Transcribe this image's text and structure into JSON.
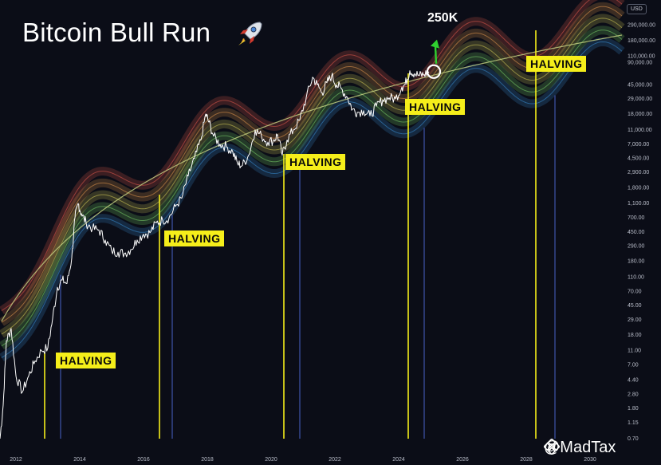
{
  "title": "Bitcoin Bull Run",
  "watermark": "@MadTax",
  "currency_tag": "USD",
  "target_label": "250K",
  "halving_label": "HALVING",
  "colors": {
    "background": "#0b0d17",
    "price": "#ffffff",
    "halving_line": "#f5ee1a",
    "halving_label_bg": "#f5ee1a",
    "blue_line": "#3b4fa0",
    "trend_line": "#c2cf80",
    "arrow": "#2fd12f",
    "band_colors": [
      "#e85b4f",
      "#e89a4f",
      "#d8cf5a",
      "#7bd46a",
      "#3b8fd6"
    ]
  },
  "icons": [
    "rocket-icon",
    "target-circle-icon",
    "up-arrow-icon",
    "binance-logo-icon"
  ],
  "chart_data": {
    "type": "line",
    "scale": "log",
    "title": "Bitcoin Bull Run",
    "xlim": [
      2011.5,
      2031.0
    ],
    "ylim": [
      0.7,
      550000
    ],
    "x_ticks": [
      "2012",
      "2014",
      "2016",
      "2018",
      "2020",
      "2022",
      "2024",
      "2026",
      "2028",
      "2030"
    ],
    "y_ticks": [
      "290,000.00",
      "180,000.00",
      "110,000.00",
      "90,000.00",
      "45,000.00",
      "29,000.00",
      "18,000.00",
      "11,000.00",
      "7,000.00",
      "4,500.00",
      "2,900.00",
      "1,800.00",
      "1,100.00",
      "700.00",
      "450.00",
      "290.00",
      "180.00",
      "110.00",
      "70.00",
      "45.00",
      "29.00",
      "18.00",
      "11.00",
      "7.00",
      "4.40",
      "2.80",
      "1.80",
      "1.15",
      "0.70"
    ],
    "halvings": [
      2012.9,
      2016.5,
      2020.4,
      2024.3,
      2028.3
    ],
    "blue_cycle_lines": [
      2013.4,
      2016.9,
      2020.9,
      2024.8,
      2028.9
    ],
    "target": {
      "x": 2025.2,
      "y": 250000,
      "label": "250K"
    },
    "series": [
      {
        "x": [
          2011.5,
          2011.6,
          2011.7,
          2011.85,
          2012.0,
          2012.2,
          2012.4,
          2012.6,
          2012.8,
          2013.0,
          2013.15,
          2013.3,
          2013.45,
          2013.6,
          2013.75,
          2013.85,
          2013.95,
          2014.05,
          2014.2,
          2014.4,
          2014.6,
          2014.8,
          2015.0,
          2015.2,
          2015.4,
          2015.6,
          2015.8,
          2016.0,
          2016.2,
          2016.4,
          2016.6,
          2016.8,
          2017.0,
          2017.2,
          2017.4,
          2017.6,
          2017.8,
          2017.95,
          2018.05,
          2018.2,
          2018.4,
          2018.6,
          2018.8,
          2018.95,
          2019.1,
          2019.3,
          2019.5,
          2019.7,
          2019.9,
          2020.1,
          2020.2,
          2020.35,
          2020.5,
          2020.7,
          2020.9,
          2021.1,
          2021.3,
          2021.45,
          2021.6,
          2021.75,
          2021.9,
          2022.05,
          2022.2,
          2022.4,
          2022.55,
          2022.7,
          2022.9,
          2023.1,
          2023.3,
          2023.5,
          2023.7,
          2023.9,
          2024.1,
          2024.2,
          2024.35,
          2024.5,
          2024.65,
          2024.8,
          2024.95
        ],
        "values": [
          0.7,
          2,
          15,
          22,
          5,
          3,
          5,
          8,
          11,
          12,
          30,
          80,
          100,
          90,
          200,
          700,
          1100,
          800,
          600,
          500,
          480,
          350,
          250,
          240,
          230,
          260,
          350,
          420,
          440,
          600,
          650,
          700,
          1000,
          1300,
          2600,
          4500,
          8000,
          18000,
          14000,
          9000,
          7000,
          6500,
          5500,
          3800,
          3600,
          5000,
          11000,
          9000,
          7500,
          8000,
          9500,
          5000,
          8000,
          11000,
          15000,
          30000,
          57000,
          45000,
          35000,
          48000,
          60000,
          45000,
          40000,
          30000,
          21000,
          19000,
          20000,
          17000,
          23000,
          28000,
          30000,
          29000,
          42000,
          45000,
          70000,
          64000,
          60000,
          62000,
          68000
        ]
      }
    ]
  }
}
